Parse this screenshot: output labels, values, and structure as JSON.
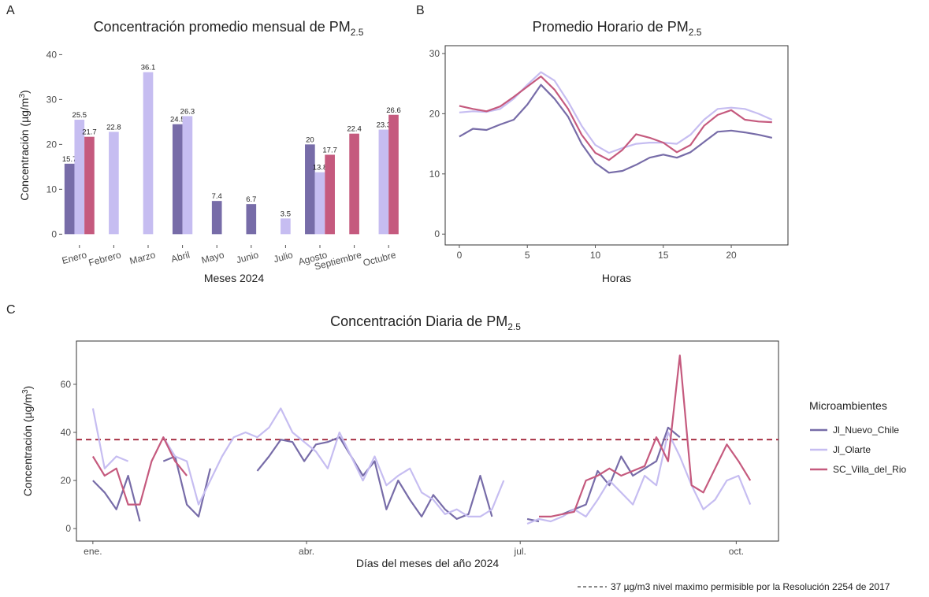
{
  "chart_data": [
    {
      "type": "bar",
      "panel": "A",
      "title": "Concentración promedio mensual de PM",
      "title_subscript": "2.5",
      "xlabel": "Meses 2024",
      "ylabel": "Concentración (µg/m",
      "ylabel_superscript": "3",
      "ylabel_end": ")",
      "categories": [
        "Enero",
        "Febrero",
        "Marzo",
        "Abril",
        "Mayo",
        "Junio",
        "Julio",
        "Agosto",
        "Septiembre",
        "Octubre"
      ],
      "series": [
        {
          "name": "Jl_Nuevo_Chile",
          "color": "#776ca8",
          "values": [
            15.7,
            null,
            null,
            24.5,
            7.4,
            6.7,
            null,
            20,
            null,
            null
          ]
        },
        {
          "name": "Jl_Olarte",
          "color": "#c6bdf1",
          "values": [
            25.5,
            22.8,
            36.1,
            26.3,
            null,
            null,
            3.5,
            13.8,
            null,
            23.3
          ]
        },
        {
          "name": "SC_Villa_del_Rio",
          "color": "#c55a7e",
          "values": [
            21.7,
            null,
            null,
            null,
            null,
            null,
            null,
            17.7,
            22.4,
            26.6
          ]
        }
      ],
      "ylim": [
        -2.4,
        42
      ],
      "yticks": [
        0,
        10,
        20,
        30,
        40
      ]
    },
    {
      "type": "line",
      "panel": "B",
      "title": "Promedio Horario de PM",
      "title_subscript": "2.5",
      "xlabel": "Horas",
      "x": [
        0,
        1,
        2,
        3,
        4,
        5,
        6,
        7,
        8,
        9,
        10,
        11,
        12,
        13,
        14,
        15,
        16,
        17,
        18,
        19,
        20,
        21,
        22,
        23
      ],
      "series": [
        {
          "name": "Jl_Nuevo_Chile",
          "color": "#776ca8",
          "values": [
            16.2,
            17.5,
            17.3,
            18.2,
            19.0,
            21.5,
            24.8,
            22.5,
            19.5,
            15.0,
            11.8,
            10.2,
            10.5,
            11.5,
            12.7,
            13.2,
            12.7,
            13.6,
            15.3,
            17.0,
            17.2,
            16.9,
            16.5,
            16.0
          ]
        },
        {
          "name": "Jl_Olarte",
          "color": "#c6bdf1",
          "values": [
            20.2,
            20.4,
            20.3,
            20.8,
            22.5,
            24.8,
            26.9,
            25.5,
            22.0,
            18.0,
            14.8,
            13.5,
            14.3,
            15.0,
            15.2,
            15.2,
            15.0,
            16.5,
            19.0,
            20.8,
            21.0,
            20.8,
            20.0,
            19.0
          ]
        },
        {
          "name": "SC_Villa_del_Rio",
          "color": "#c55a7e",
          "values": [
            21.3,
            20.8,
            20.4,
            21.2,
            22.8,
            24.5,
            26.2,
            24.0,
            20.8,
            16.5,
            13.5,
            12.3,
            14.0,
            16.6,
            16.0,
            15.2,
            13.6,
            14.8,
            18.0,
            19.8,
            20.6,
            19.0,
            18.7,
            18.6
          ]
        }
      ],
      "xlim": [
        -1.04,
        24.17
      ],
      "xticks": [
        0,
        5,
        10,
        15,
        20
      ],
      "ylim": [
        -1.8,
        31.3
      ],
      "yticks": [
        0,
        10,
        20,
        30
      ]
    },
    {
      "type": "line",
      "panel": "C",
      "title": "Concentración Diaria de PM",
      "title_subscript": "2.5",
      "xlabel": "Días del meses del año 2024",
      "ylabel": "Concentración (µg/m",
      "ylabel_superscript": "3",
      "ylabel_end": ")",
      "x": [
        1,
        6,
        11,
        16,
        21,
        26,
        31,
        36,
        41,
        46,
        51,
        56,
        61,
        66,
        71,
        76,
        81,
        86,
        91,
        96,
        101,
        106,
        111,
        116,
        121,
        126,
        131,
        136,
        141,
        146,
        151,
        156,
        161,
        166,
        171,
        176,
        181,
        186,
        191,
        196,
        201,
        206,
        211,
        216,
        221,
        226,
        231,
        236,
        241,
        246,
        251,
        256,
        261,
        266,
        271,
        276,
        281
      ],
      "series": [
        {
          "name": "Jl_Nuevo_Chile",
          "color": "#776ca8",
          "values": [
            20,
            15,
            8,
            22,
            3,
            null,
            28,
            30,
            10,
            5,
            25,
            null,
            null,
            null,
            24,
            30,
            37,
            36,
            28,
            35,
            36,
            38,
            30,
            22,
            28,
            8,
            20,
            12,
            5,
            14,
            8,
            4,
            6,
            22,
            5,
            null,
            null,
            4,
            3,
            null,
            6,
            8,
            10,
            24,
            18,
            30,
            22,
            25,
            28,
            42,
            38,
            null,
            null,
            null,
            null,
            null,
            null
          ]
        },
        {
          "name": "Jl_Olarte",
          "color": "#c6bdf1",
          "values": [
            50,
            25,
            30,
            28,
            null,
            null,
            38,
            30,
            28,
            10,
            20,
            30,
            38,
            40,
            38,
            42,
            50,
            40,
            36,
            32,
            25,
            40,
            30,
            20,
            30,
            18,
            22,
            25,
            15,
            12,
            6,
            8,
            5,
            5,
            8,
            20,
            null,
            2,
            4,
            3,
            5,
            8,
            5,
            12,
            20,
            15,
            10,
            22,
            18,
            40,
            30,
            18,
            8,
            12,
            20,
            22,
            10
          ]
        },
        {
          "name": "SC_Villa_del_Rio",
          "color": "#c55a7e",
          "values": [
            30,
            22,
            25,
            10,
            10,
            28,
            38,
            28,
            22,
            null,
            null,
            null,
            null,
            null,
            null,
            null,
            null,
            null,
            null,
            null,
            null,
            null,
            null,
            null,
            null,
            null,
            null,
            null,
            null,
            null,
            null,
            null,
            null,
            null,
            null,
            null,
            null,
            null,
            5,
            5,
            6,
            7,
            20,
            22,
            25,
            22,
            24,
            26,
            38,
            28,
            72,
            18,
            15,
            25,
            35,
            28,
            20
          ]
        }
      ],
      "xlim": [
        -6,
        293
      ],
      "xticks": [
        {
          "value": 1,
          "label": "ene."
        },
        {
          "value": 92,
          "label": "abr."
        },
        {
          "value": 183,
          "label": "jul."
        },
        {
          "value": 275,
          "label": "oct."
        }
      ],
      "ylim": [
        -5.2,
        78
      ],
      "yticks": [
        0,
        20,
        40,
        60
      ],
      "legend": true,
      "legend_title": "Microambientes",
      "threshold": {
        "value": 37,
        "color": "#a83246",
        "label": "37 µg/m3 nivel maximo permisible por la Resolución 2254 de 2017"
      }
    }
  ]
}
